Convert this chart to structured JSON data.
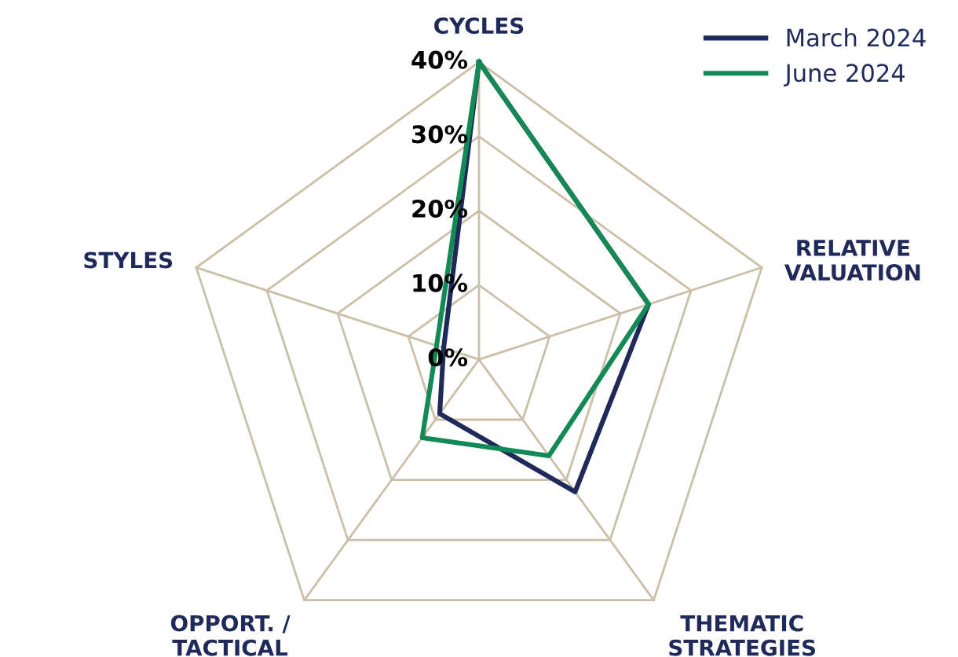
{
  "chart_data": {
    "type": "radar",
    "categories": [
      "CYCLES",
      "RELATIVE\nVALUATION",
      "THEMATIC\nSTRATEGIES",
      "OPPORT. /\nTACTICAL",
      "STYLES"
    ],
    "series": [
      {
        "name": "March 2024",
        "color": "#1f2a5a",
        "values": [
          40,
          24,
          22,
          9,
          5
        ]
      },
      {
        "name": "June 2024",
        "color": "#138a55",
        "values": [
          40,
          24,
          16,
          13,
          6
        ]
      }
    ],
    "ylim": [
      0,
      40
    ],
    "yticks": [
      {
        "value": 0,
        "label": "0%"
      },
      {
        "value": 10,
        "label": "10%"
      },
      {
        "value": 20,
        "label": "20%"
      },
      {
        "value": 30,
        "label": "30%"
      },
      {
        "value": 40,
        "label": "40%"
      }
    ],
    "grid": true,
    "legend": "top right"
  }
}
